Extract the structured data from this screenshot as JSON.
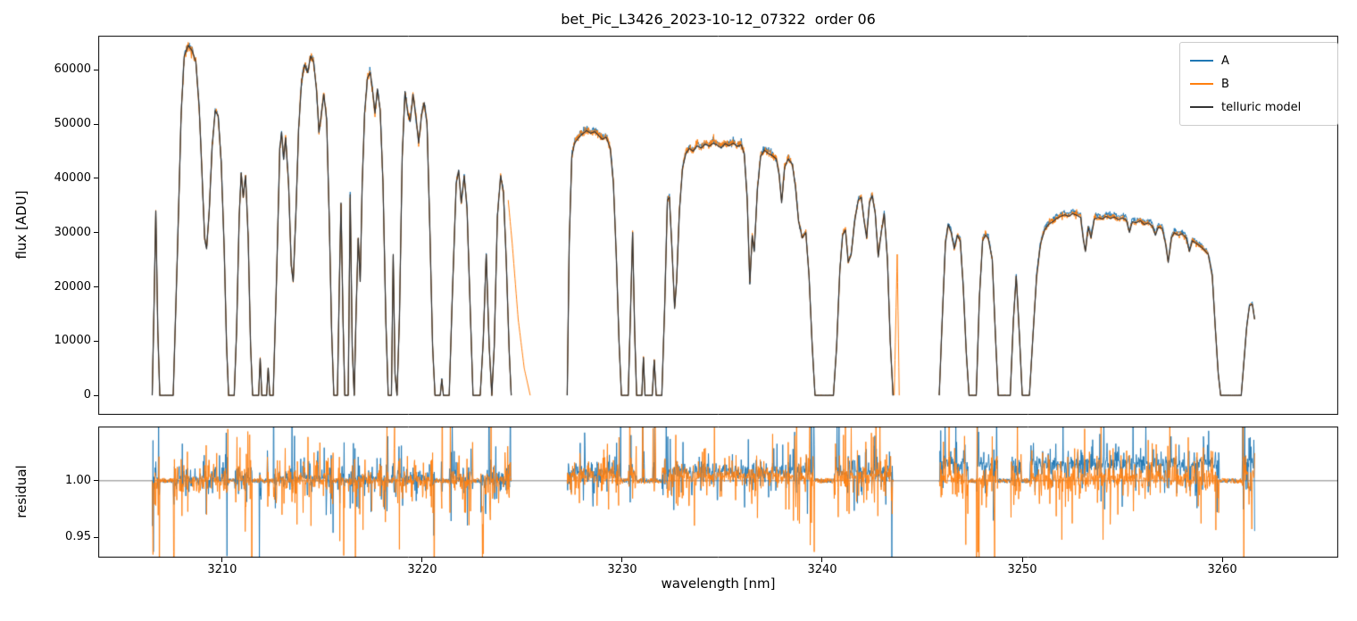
{
  "chart_data": {
    "type": "line",
    "title": "bet_Pic_L3426_2023-10-12_07322  order 06",
    "x_axis": {
      "label": "wavelength [nm]",
      "lim": [
        3203.8,
        3265.8
      ],
      "ticks": [
        3210,
        3220,
        3230,
        3240,
        3250,
        3260
      ]
    },
    "flux_panel": {
      "ylabel": "flux [ADU]",
      "ylim": [
        -3600,
        66300
      ],
      "yticks": [
        0,
        10000,
        20000,
        30000,
        40000,
        50000,
        60000
      ]
    },
    "residual_panel": {
      "ylabel": "residual",
      "ylim": [
        0.932,
        1.048
      ],
      "yticks": [
        0.95,
        1.0
      ],
      "ytick_labels": [
        "0.95",
        "1.00"
      ],
      "hline": 1.0,
      "hline_color": "#808080"
    },
    "legend": {
      "items": [
        {
          "label": "A",
          "color": "#1f77b4"
        },
        {
          "label": "B",
          "color": "#ff7f0e"
        },
        {
          "label": "telluric model",
          "color": "#333333"
        }
      ]
    },
    "series": {
      "a": {
        "name": "A",
        "color": "#1f77b4",
        "offset_breaks": [
          3226,
          3244
        ],
        "offset_values": [
          0.002,
          0.008,
          0.015
        ],
        "noise_frac": 0.009
      },
      "b": {
        "name": "B",
        "color": "#ff7f0e",
        "offset_breaks": [
          3226,
          3244
        ],
        "offset_values": [
          0.0,
          0.004,
          0.002
        ],
        "noise_frac": 0.013
      }
    },
    "telluric_model_color": "#333333",
    "spine_color": "#000000",
    "residual": {
      "mask_threshold_adu": 2200,
      "quiet_sigma": 0.002,
      "sigma_base": 0.005,
      "sigma_ref_flux": 48000,
      "b_sigma_factor": 1.35
    },
    "telluric_model_segments": [
      [
        [
          3206.5,
          0
        ],
        [
          3206.6,
          18000
        ],
        [
          3206.68,
          34000
        ],
        [
          3206.78,
          12000
        ],
        [
          3206.88,
          0
        ],
        [
          3207.55,
          0
        ],
        [
          3207.75,
          25000
        ],
        [
          3207.95,
          52000
        ],
        [
          3208.1,
          62500
        ],
        [
          3208.3,
          64500
        ],
        [
          3208.5,
          63500
        ],
        [
          3208.68,
          61500
        ],
        [
          3208.85,
          53000
        ],
        [
          3209.0,
          40000
        ],
        [
          3209.12,
          29000
        ],
        [
          3209.22,
          27000
        ],
        [
          3209.35,
          34000
        ],
        [
          3209.5,
          46000
        ],
        [
          3209.65,
          52500
        ],
        [
          3209.8,
          51500
        ],
        [
          3209.95,
          43000
        ],
        [
          3210.1,
          27000
        ],
        [
          3210.22,
          9000
        ],
        [
          3210.32,
          0
        ],
        [
          3210.6,
          0
        ],
        [
          3210.72,
          12000
        ],
        [
          3210.85,
          33000
        ],
        [
          3210.95,
          41000
        ],
        [
          3211.05,
          36500
        ],
        [
          3211.17,
          40500
        ],
        [
          3211.3,
          29000
        ],
        [
          3211.42,
          9000
        ],
        [
          3211.52,
          0
        ],
        [
          3211.82,
          0
        ],
        [
          3211.9,
          6800
        ],
        [
          3211.98,
          0
        ],
        [
          3212.22,
          0
        ],
        [
          3212.3,
          5000
        ],
        [
          3212.38,
          0
        ],
        [
          3212.55,
          0
        ],
        [
          3212.72,
          22000
        ],
        [
          3212.88,
          45500
        ],
        [
          3212.97,
          48500
        ],
        [
          3213.07,
          43500
        ],
        [
          3213.17,
          47500
        ],
        [
          3213.32,
          39000
        ],
        [
          3213.45,
          24000
        ],
        [
          3213.55,
          21000
        ],
        [
          3213.68,
          33000
        ],
        [
          3213.82,
          49000
        ],
        [
          3213.97,
          58000
        ],
        [
          3214.12,
          61000
        ],
        [
          3214.27,
          59500
        ],
        [
          3214.42,
          62500
        ],
        [
          3214.57,
          61500
        ],
        [
          3214.72,
          56000
        ],
        [
          3214.84,
          48500
        ],
        [
          3214.95,
          51500
        ],
        [
          3215.08,
          55500
        ],
        [
          3215.22,
          51000
        ],
        [
          3215.35,
          33000
        ],
        [
          3215.47,
          12000
        ],
        [
          3215.58,
          0
        ],
        [
          3215.76,
          0
        ],
        [
          3215.86,
          21000
        ],
        [
          3215.94,
          35500
        ],
        [
          3216.04,
          14000
        ],
        [
          3216.13,
          0
        ],
        [
          3216.3,
          0
        ],
        [
          3216.4,
          37000
        ],
        [
          3216.5,
          9000
        ],
        [
          3216.6,
          0
        ],
        [
          3216.7,
          16000
        ],
        [
          3216.8,
          29000
        ],
        [
          3216.9,
          21000
        ],
        [
          3217.0,
          39000
        ],
        [
          3217.12,
          52000
        ],
        [
          3217.26,
          58500
        ],
        [
          3217.4,
          59500
        ],
        [
          3217.54,
          55500
        ],
        [
          3217.64,
          52000
        ],
        [
          3217.76,
          56500
        ],
        [
          3217.9,
          52500
        ],
        [
          3218.04,
          39000
        ],
        [
          3218.18,
          14000
        ],
        [
          3218.3,
          0
        ],
        [
          3218.46,
          0
        ],
        [
          3218.55,
          26000
        ],
        [
          3218.64,
          4000
        ],
        [
          3218.74,
          0
        ],
        [
          3218.86,
          14000
        ],
        [
          3219.0,
          44000
        ],
        [
          3219.14,
          56000
        ],
        [
          3219.28,
          52000
        ],
        [
          3219.4,
          50500
        ],
        [
          3219.54,
          55500
        ],
        [
          3219.68,
          51500
        ],
        [
          3219.82,
          46500
        ],
        [
          3219.98,
          52000
        ],
        [
          3220.1,
          54000
        ],
        [
          3220.24,
          50000
        ],
        [
          3220.38,
          31000
        ],
        [
          3220.52,
          9000
        ],
        [
          3220.64,
          0
        ],
        [
          3220.9,
          0
        ],
        [
          3220.98,
          3000
        ],
        [
          3221.06,
          0
        ],
        [
          3221.35,
          0
        ],
        [
          3221.52,
          20000
        ],
        [
          3221.7,
          39000
        ],
        [
          3221.82,
          41500
        ],
        [
          3221.95,
          35500
        ],
        [
          3222.1,
          40500
        ],
        [
          3222.24,
          34500
        ],
        [
          3222.4,
          16000
        ],
        [
          3222.54,
          0
        ],
        [
          3222.9,
          0
        ],
        [
          3223.05,
          10000
        ],
        [
          3223.2,
          26000
        ],
        [
          3223.35,
          9000
        ],
        [
          3223.48,
          0
        ],
        [
          3223.6,
          9000
        ],
        [
          3223.76,
          33000
        ],
        [
          3223.92,
          40500
        ],
        [
          3224.06,
          37500
        ],
        [
          3224.2,
          25000
        ],
        [
          3224.35,
          8000
        ],
        [
          3224.45,
          0
        ]
      ],
      [
        [
          3227.25,
          0
        ],
        [
          3227.35,
          28000
        ],
        [
          3227.48,
          44000
        ],
        [
          3227.62,
          46500
        ],
        [
          3227.82,
          47500
        ],
        [
          3228.02,
          48200
        ],
        [
          3228.22,
          48800
        ],
        [
          3228.42,
          48300
        ],
        [
          3228.62,
          48600
        ],
        [
          3228.82,
          47900
        ],
        [
          3229.0,
          47200
        ],
        [
          3229.2,
          47600
        ],
        [
          3229.4,
          45500
        ],
        [
          3229.56,
          39000
        ],
        [
          3229.7,
          26000
        ],
        [
          3229.84,
          10000
        ],
        [
          3229.96,
          0
        ],
        [
          3230.3,
          0
        ],
        [
          3230.42,
          16000
        ],
        [
          3230.52,
          30000
        ],
        [
          3230.62,
          12000
        ],
        [
          3230.72,
          0
        ],
        [
          3230.98,
          0
        ],
        [
          3231.06,
          7000
        ],
        [
          3231.14,
          0
        ],
        [
          3231.5,
          0
        ],
        [
          3231.6,
          6500
        ],
        [
          3231.7,
          0
        ],
        [
          3231.98,
          0
        ],
        [
          3232.12,
          16000
        ],
        [
          3232.26,
          36000
        ],
        [
          3232.36,
          36500
        ],
        [
          3232.5,
          26000
        ],
        [
          3232.62,
          16000
        ],
        [
          3232.72,
          21000
        ],
        [
          3232.86,
          34000
        ],
        [
          3233.02,
          42000
        ],
        [
          3233.18,
          44500
        ],
        [
          3233.35,
          45500
        ],
        [
          3233.55,
          45000
        ],
        [
          3233.75,
          46000
        ],
        [
          3233.95,
          45600
        ],
        [
          3234.15,
          46300
        ],
        [
          3234.35,
          45900
        ],
        [
          3234.55,
          46500
        ],
        [
          3234.75,
          46100
        ],
        [
          3234.95,
          45600
        ],
        [
          3235.15,
          46400
        ],
        [
          3235.35,
          46000
        ],
        [
          3235.55,
          46500
        ],
        [
          3235.75,
          45900
        ],
        [
          3235.95,
          46200
        ],
        [
          3236.1,
          44500
        ],
        [
          3236.25,
          36000
        ],
        [
          3236.38,
          20500
        ],
        [
          3236.5,
          29500
        ],
        [
          3236.6,
          26500
        ],
        [
          3236.76,
          38000
        ],
        [
          3236.92,
          44000
        ],
        [
          3237.1,
          45200
        ],
        [
          3237.3,
          44600
        ],
        [
          3237.5,
          44200
        ],
        [
          3237.7,
          43600
        ],
        [
          3237.85,
          40500
        ],
        [
          3237.97,
          35500
        ],
        [
          3238.12,
          42000
        ],
        [
          3238.3,
          43600
        ],
        [
          3238.5,
          42600
        ],
        [
          3238.66,
          38500
        ],
        [
          3238.82,
          32000
        ],
        [
          3239.0,
          29000
        ],
        [
          3239.18,
          30000
        ],
        [
          3239.34,
          22000
        ],
        [
          3239.5,
          9000
        ],
        [
          3239.64,
          0
        ],
        [
          3240.56,
          0
        ],
        [
          3240.72,
          9000
        ],
        [
          3240.88,
          23000
        ],
        [
          3241.02,
          29500
        ],
        [
          3241.16,
          30500
        ],
        [
          3241.3,
          24500
        ],
        [
          3241.45,
          26000
        ],
        [
          3241.62,
          32000
        ],
        [
          3241.8,
          36000
        ],
        [
          3241.95,
          36500
        ],
        [
          3242.1,
          32000
        ],
        [
          3242.22,
          29000
        ],
        [
          3242.36,
          35500
        ],
        [
          3242.5,
          36800
        ],
        [
          3242.65,
          33500
        ],
        [
          3242.8,
          25500
        ],
        [
          3242.95,
          30000
        ],
        [
          3243.1,
          33500
        ],
        [
          3243.26,
          25000
        ],
        [
          3243.4,
          10000
        ],
        [
          3243.54,
          0
        ]
      ],
      [
        [
          3245.85,
          0
        ],
        [
          3246.0,
          14000
        ],
        [
          3246.16,
          28000
        ],
        [
          3246.3,
          31500
        ],
        [
          3246.45,
          30000
        ],
        [
          3246.6,
          27000
        ],
        [
          3246.76,
          29500
        ],
        [
          3246.9,
          28500
        ],
        [
          3247.05,
          20000
        ],
        [
          3247.2,
          8000
        ],
        [
          3247.34,
          0
        ],
        [
          3247.7,
          0
        ],
        [
          3247.86,
          18000
        ],
        [
          3248.02,
          28500
        ],
        [
          3248.16,
          29500
        ],
        [
          3248.3,
          29000
        ],
        [
          3248.5,
          25000
        ],
        [
          3248.66,
          11000
        ],
        [
          3248.8,
          0
        ],
        [
          3249.4,
          0
        ],
        [
          3249.56,
          14000
        ],
        [
          3249.7,
          22000
        ],
        [
          3249.86,
          11000
        ],
        [
          3250.0,
          0
        ],
        [
          3250.36,
          0
        ],
        [
          3250.52,
          10000
        ],
        [
          3250.72,
          22000
        ],
        [
          3250.92,
          28000
        ],
        [
          3251.12,
          30500
        ],
        [
          3251.32,
          31500
        ],
        [
          3251.52,
          32000
        ],
        [
          3251.72,
          32600
        ],
        [
          3251.92,
          33000
        ],
        [
          3252.12,
          33300
        ],
        [
          3252.32,
          33000
        ],
        [
          3252.52,
          33500
        ],
        [
          3252.72,
          33200
        ],
        [
          3252.92,
          32800
        ],
        [
          3253.06,
          28500
        ],
        [
          3253.16,
          26500
        ],
        [
          3253.3,
          31000
        ],
        [
          3253.44,
          29000
        ],
        [
          3253.6,
          32500
        ],
        [
          3253.8,
          32800
        ],
        [
          3254.0,
          32500
        ],
        [
          3254.2,
          33000
        ],
        [
          3254.4,
          32600
        ],
        [
          3254.6,
          32900
        ],
        [
          3254.8,
          32400
        ],
        [
          3255.0,
          32700
        ],
        [
          3255.2,
          32300
        ],
        [
          3255.36,
          30000
        ],
        [
          3255.5,
          32000
        ],
        [
          3255.7,
          31800
        ],
        [
          3255.9,
          32200
        ],
        [
          3256.1,
          31500
        ],
        [
          3256.3,
          31800
        ],
        [
          3256.5,
          31200
        ],
        [
          3256.66,
          29500
        ],
        [
          3256.8,
          31000
        ],
        [
          3257.0,
          30800
        ],
        [
          3257.16,
          28000
        ],
        [
          3257.3,
          24500
        ],
        [
          3257.46,
          29000
        ],
        [
          3257.6,
          30000
        ],
        [
          3257.8,
          29500
        ],
        [
          3258.0,
          29800
        ],
        [
          3258.2,
          29000
        ],
        [
          3258.36,
          26500
        ],
        [
          3258.5,
          28500
        ],
        [
          3258.7,
          28000
        ],
        [
          3258.9,
          27500
        ],
        [
          3259.1,
          26800
        ],
        [
          3259.3,
          26000
        ],
        [
          3259.5,
          22000
        ],
        [
          3259.66,
          12000
        ],
        [
          3259.8,
          4000
        ],
        [
          3259.92,
          0
        ],
        [
          3260.95,
          0
        ],
        [
          3261.08,
          6000
        ],
        [
          3261.22,
          12500
        ],
        [
          3261.36,
          16500
        ],
        [
          3261.5,
          16800
        ],
        [
          3261.62,
          14000
        ]
      ]
    ],
    "b_extra_segments": [
      [
        [
          3224.3,
          36000
        ],
        [
          3224.5,
          28000
        ],
        [
          3224.8,
          14000
        ],
        [
          3225.1,
          5000
        ],
        [
          3225.4,
          0
        ]
      ],
      [
        [
          3243.6,
          0
        ],
        [
          3243.75,
          26000
        ],
        [
          3243.85,
          0
        ]
      ]
    ]
  }
}
